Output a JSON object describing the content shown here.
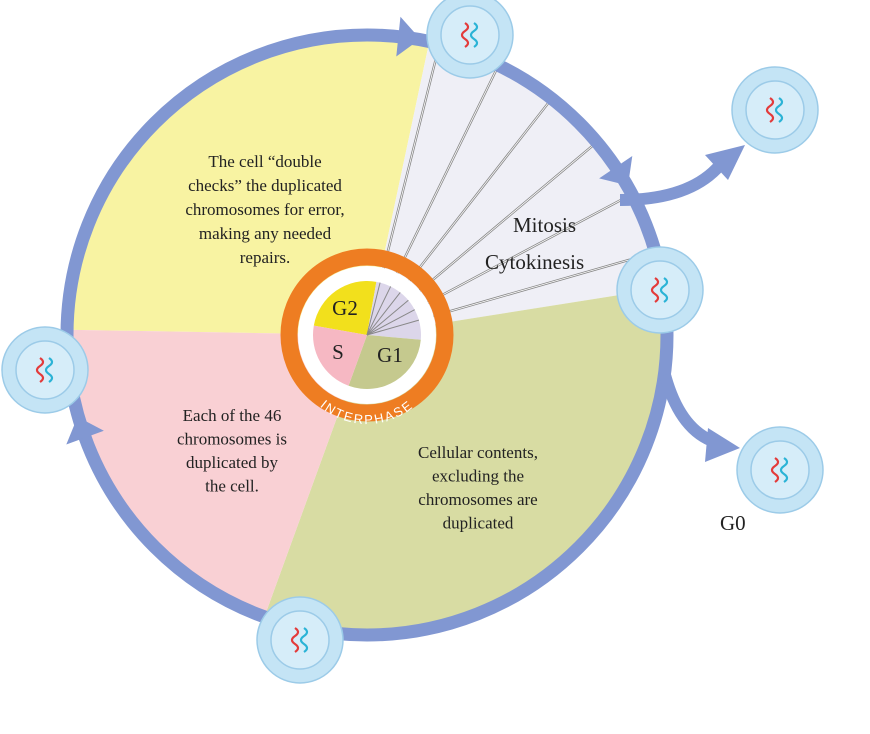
{
  "descriptions": {
    "g2": [
      "The cell “double",
      "checks” the duplicated",
      "chromosomes for error,",
      "making any needed",
      "repairs."
    ],
    "s": [
      "Each of the 46",
      "chromosomes is",
      "duplicated by",
      "the cell."
    ],
    "g1": [
      "Cellular contents,",
      "excluding the",
      "chromosomes are",
      "duplicated"
    ]
  },
  "phases": {
    "mitosis": "Mitosis",
    "cytokinesis": "Cytokinesis",
    "g2": "G2",
    "s": "S",
    "g1": "G1",
    "interphase": "INTERPHASE",
    "g0": "G0"
  }
}
